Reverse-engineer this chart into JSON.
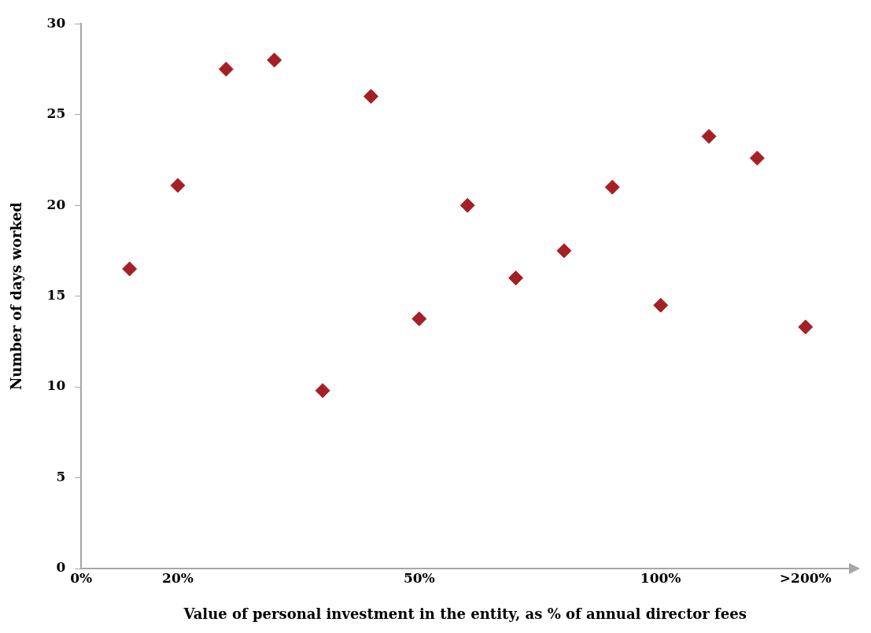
{
  "chart_data": {
    "type": "scatter",
    "xlabel": "Value of personal investment in the entity, as % of annual director fees",
    "ylabel": "Number of days worked",
    "categories": [
      "0%",
      null,
      "20%",
      null,
      null,
      null,
      null,
      "50%",
      null,
      null,
      null,
      null,
      "100%",
      null,
      null,
      ">200%"
    ],
    "values": [
      null,
      16.5,
      21.1,
      27.5,
      28,
      9.8,
      26,
      13.75,
      20,
      16,
      17.5,
      21,
      14.5,
      23.8,
      22.6,
      13.3
    ],
    "color": "#a52025",
    "marker": "diamond",
    "ylim": [
      0,
      30
    ],
    "yticks": [
      0,
      5,
      10,
      15,
      20,
      25,
      30
    ],
    "grid": false,
    "legend": false
  }
}
